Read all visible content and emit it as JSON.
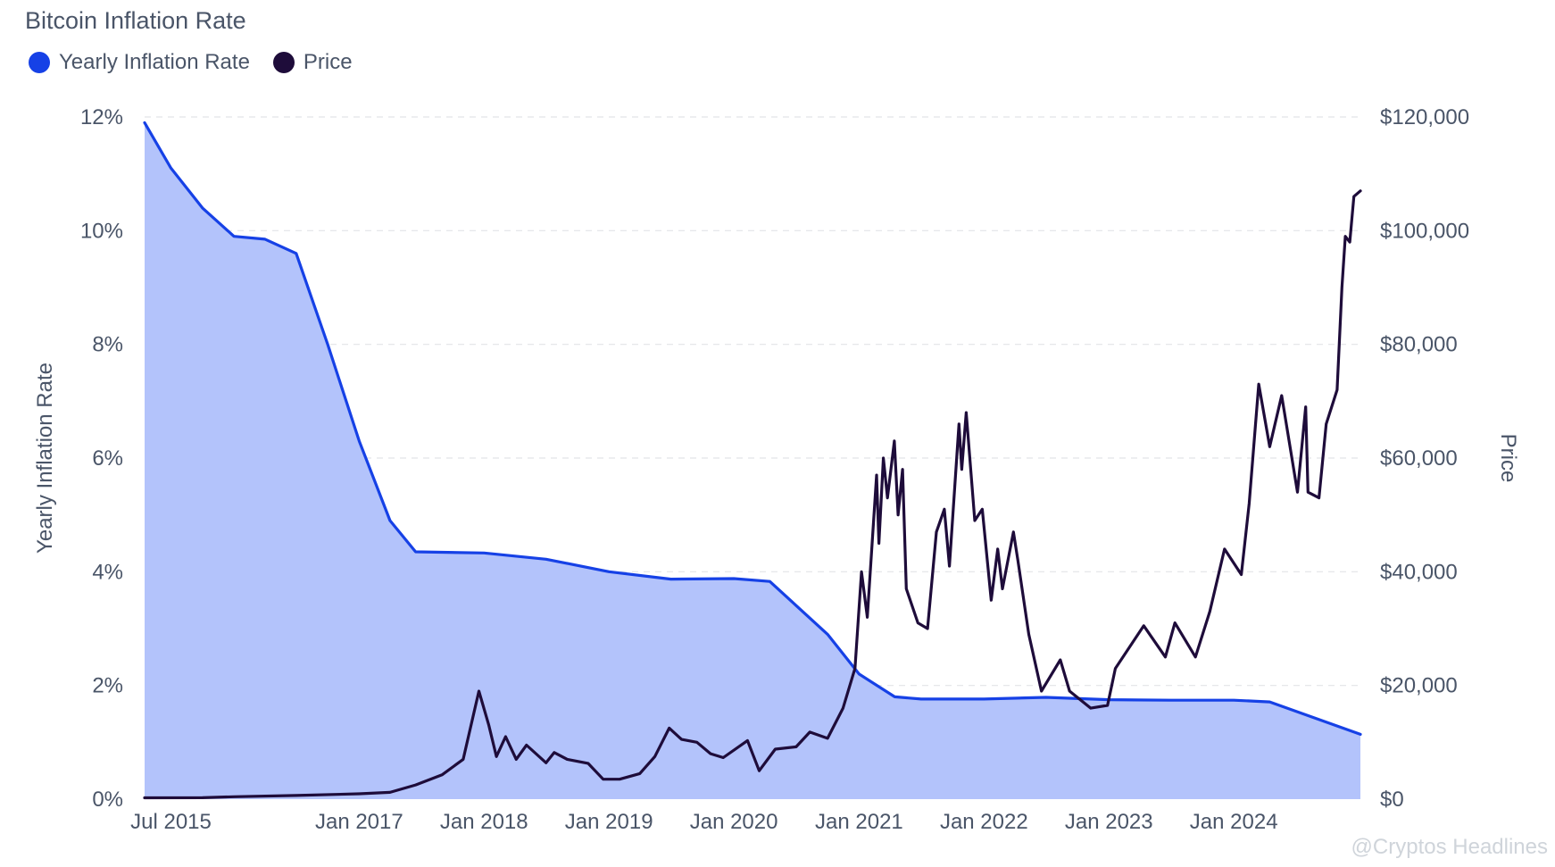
{
  "chart_data": {
    "type": "line",
    "title": "Bitcoin Inflation Rate",
    "legend": [
      {
        "name": "Yearly Inflation Rate",
        "color": "#1641e6"
      },
      {
        "name": "Price",
        "color": "#1e0c3a"
      }
    ],
    "legend_position": "top-left",
    "grid": true,
    "x_axis": {
      "type": "date",
      "range": [
        "2015-04-15",
        "2025-01-05"
      ],
      "ticks": [
        {
          "date": "2015-07-01",
          "label": "Jul 2015"
        },
        {
          "date": "2017-01-01",
          "label": "Jan 2017"
        },
        {
          "date": "2018-01-01",
          "label": "Jan 2018"
        },
        {
          "date": "2019-01-01",
          "label": "Jan 2019"
        },
        {
          "date": "2020-01-01",
          "label": "Jan 2020"
        },
        {
          "date": "2021-01-01",
          "label": "Jan 2021"
        },
        {
          "date": "2022-01-01",
          "label": "Jan 2022"
        },
        {
          "date": "2023-01-01",
          "label": "Jan 2023"
        },
        {
          "date": "2024-01-01",
          "label": "Jan 2024"
        }
      ]
    },
    "y_left": {
      "label": "Yearly Inflation Rate",
      "range": [
        0,
        12
      ],
      "ticks": [
        {
          "value": 0,
          "label": "0%"
        },
        {
          "value": 2,
          "label": "2%"
        },
        {
          "value": 4,
          "label": "4%"
        },
        {
          "value": 6,
          "label": "6%"
        },
        {
          "value": 8,
          "label": "8%"
        },
        {
          "value": 10,
          "label": "10%"
        },
        {
          "value": 12,
          "label": "12%"
        }
      ]
    },
    "y_right": {
      "label": "Price",
      "range": [
        0,
        120000
      ],
      "ticks": [
        {
          "value": 0,
          "label": "$0"
        },
        {
          "value": 20000,
          "label": "$20,000"
        },
        {
          "value": 40000,
          "label": "$40,000"
        },
        {
          "value": 60000,
          "label": "$60,000"
        },
        {
          "value": 80000,
          "label": "$80,000"
        },
        {
          "value": 100000,
          "label": "$100,000"
        },
        {
          "value": 120000,
          "label": "$120,000"
        }
      ]
    },
    "series": [
      {
        "name": "Yearly Inflation Rate",
        "axis": "left",
        "color": "#1641e6",
        "fill": "#b3c3fb",
        "points": [
          [
            "2015-04-15",
            11.9
          ],
          [
            "2015-07-01",
            11.1
          ],
          [
            "2015-10-01",
            10.4
          ],
          [
            "2016-01-01",
            9.9
          ],
          [
            "2016-04-01",
            9.85
          ],
          [
            "2016-07-01",
            9.6
          ],
          [
            "2016-10-01",
            8.0
          ],
          [
            "2017-01-01",
            6.3
          ],
          [
            "2017-04-01",
            4.9
          ],
          [
            "2017-06-15",
            4.35
          ],
          [
            "2018-01-01",
            4.33
          ],
          [
            "2018-07-01",
            4.22
          ],
          [
            "2019-01-01",
            4.0
          ],
          [
            "2019-07-01",
            3.87
          ],
          [
            "2020-01-01",
            3.88
          ],
          [
            "2020-04-15",
            3.83
          ],
          [
            "2020-10-01",
            2.9
          ],
          [
            "2021-01-01",
            2.2
          ],
          [
            "2021-04-15",
            1.8
          ],
          [
            "2021-07-01",
            1.76
          ],
          [
            "2022-01-01",
            1.76
          ],
          [
            "2022-07-01",
            1.79
          ],
          [
            "2023-01-01",
            1.75
          ],
          [
            "2023-07-01",
            1.74
          ],
          [
            "2024-01-01",
            1.74
          ],
          [
            "2024-04-15",
            1.71
          ],
          [
            "2025-01-05",
            1.14
          ]
        ]
      },
      {
        "name": "Price",
        "axis": "right",
        "color": "#1e0c3a",
        "points": [
          [
            "2015-04-15",
            230
          ],
          [
            "2015-10-01",
            250
          ],
          [
            "2016-01-01",
            430
          ],
          [
            "2016-07-01",
            650
          ],
          [
            "2017-01-01",
            950
          ],
          [
            "2017-04-01",
            1200
          ],
          [
            "2017-06-15",
            2500
          ],
          [
            "2017-09-01",
            4300
          ],
          [
            "2017-11-01",
            7000
          ],
          [
            "2017-12-17",
            19000
          ],
          [
            "2018-01-15",
            13000
          ],
          [
            "2018-02-06",
            7500
          ],
          [
            "2018-03-05",
            11000
          ],
          [
            "2018-04-05",
            7000
          ],
          [
            "2018-05-05",
            9500
          ],
          [
            "2018-07-01",
            6400
          ],
          [
            "2018-07-25",
            8200
          ],
          [
            "2018-09-01",
            7000
          ],
          [
            "2018-11-01",
            6300
          ],
          [
            "2018-12-15",
            3500
          ],
          [
            "2019-02-01",
            3500
          ],
          [
            "2019-04-01",
            4500
          ],
          [
            "2019-05-15",
            7500
          ],
          [
            "2019-06-26",
            12500
          ],
          [
            "2019-08-01",
            10500
          ],
          [
            "2019-09-15",
            10000
          ],
          [
            "2019-10-25",
            8000
          ],
          [
            "2019-12-01",
            7300
          ],
          [
            "2020-02-10",
            10300
          ],
          [
            "2020-03-15",
            5000
          ],
          [
            "2020-05-01",
            8800
          ],
          [
            "2020-07-01",
            9200
          ],
          [
            "2020-08-10",
            11800
          ],
          [
            "2020-10-01",
            10700
          ],
          [
            "2020-11-15",
            16000
          ],
          [
            "2020-12-20",
            23000
          ],
          [
            "2021-01-08",
            40000
          ],
          [
            "2021-01-25",
            32000
          ],
          [
            "2021-02-21",
            57000
          ],
          [
            "2021-02-28",
            45000
          ],
          [
            "2021-03-13",
            60000
          ],
          [
            "2021-03-25",
            53000
          ],
          [
            "2021-04-14",
            63000
          ],
          [
            "2021-04-25",
            50000
          ],
          [
            "2021-05-08",
            58000
          ],
          [
            "2021-05-19",
            37000
          ],
          [
            "2021-06-22",
            31000
          ],
          [
            "2021-07-20",
            30000
          ],
          [
            "2021-08-15",
            47000
          ],
          [
            "2021-09-07",
            51000
          ],
          [
            "2021-09-22",
            41000
          ],
          [
            "2021-10-20",
            66000
          ],
          [
            "2021-10-28",
            58000
          ],
          [
            "2021-11-10",
            68000
          ],
          [
            "2021-12-05",
            49000
          ],
          [
            "2021-12-27",
            51000
          ],
          [
            "2022-01-22",
            35000
          ],
          [
            "2022-02-10",
            44000
          ],
          [
            "2022-02-24",
            37000
          ],
          [
            "2022-03-28",
            47000
          ],
          [
            "2022-04-10",
            42000
          ],
          [
            "2022-05-12",
            29000
          ],
          [
            "2022-06-18",
            19000
          ],
          [
            "2022-08-12",
            24500
          ],
          [
            "2022-09-08",
            19000
          ],
          [
            "2022-11-09",
            16000
          ],
          [
            "2022-12-28",
            16500
          ],
          [
            "2023-01-20",
            23000
          ],
          [
            "2023-04-13",
            30500
          ],
          [
            "2023-06-15",
            25000
          ],
          [
            "2023-07-13",
            31000
          ],
          [
            "2023-09-11",
            25000
          ],
          [
            "2023-10-23",
            33000
          ],
          [
            "2023-12-05",
            44000
          ],
          [
            "2024-01-23",
            39500
          ],
          [
            "2024-02-15",
            52000
          ],
          [
            "2024-03-14",
            73000
          ],
          [
            "2024-04-15",
            62000
          ],
          [
            "2024-05-20",
            71000
          ],
          [
            "2024-07-05",
            54000
          ],
          [
            "2024-07-29",
            69000
          ],
          [
            "2024-08-05",
            54000
          ],
          [
            "2024-09-06",
            53000
          ],
          [
            "2024-09-27",
            66000
          ],
          [
            "2024-10-29",
            72000
          ],
          [
            "2024-11-12",
            90000
          ],
          [
            "2024-11-22",
            99000
          ],
          [
            "2024-12-05",
            98000
          ],
          [
            "2024-12-17",
            106000
          ],
          [
            "2025-01-05",
            107000
          ]
        ]
      }
    ]
  },
  "watermark": "@Cryptos Headlines"
}
